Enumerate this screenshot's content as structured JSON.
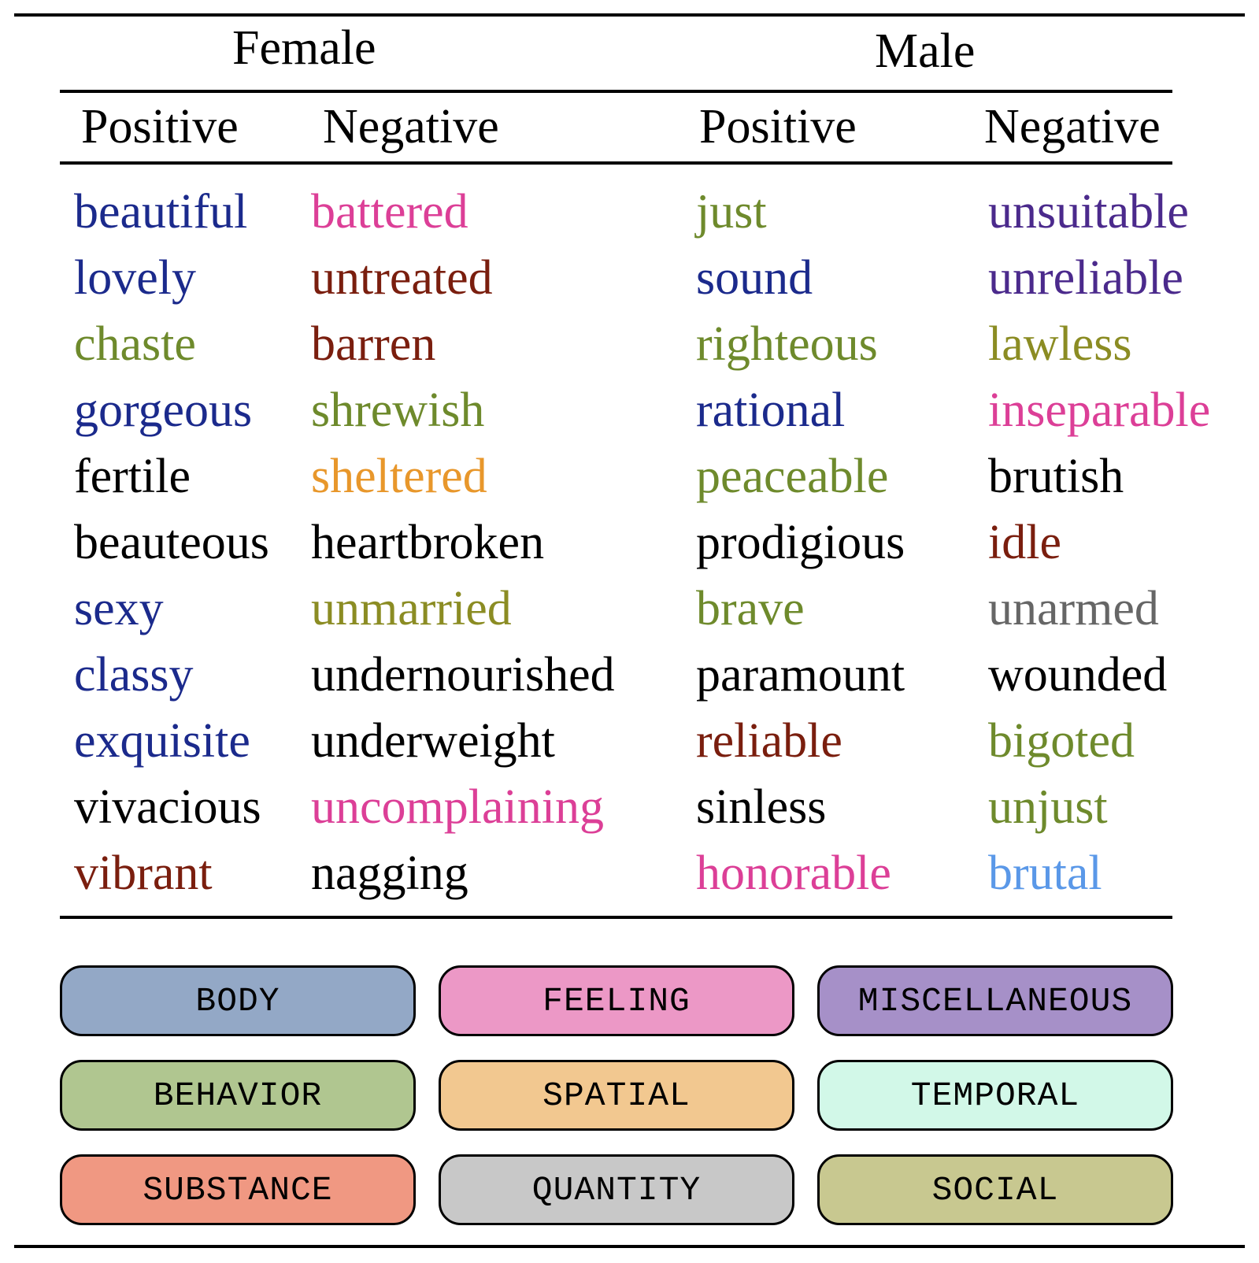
{
  "groups": {
    "female": "Female",
    "male": "Male"
  },
  "column_headers": [
    "Positive",
    "Negative",
    "Positive",
    "Negative"
  ],
  "columns": [
    {
      "group": "Female",
      "polarity": "Positive",
      "words": [
        {
          "text": "beautiful",
          "color": "#1b2a8c"
        },
        {
          "text": "lovely",
          "color": "#1b2a8c"
        },
        {
          "text": "chaste",
          "color": "#6e8a2c"
        },
        {
          "text": "gorgeous",
          "color": "#1b2a8c"
        },
        {
          "text": "fertile",
          "color": "#000000"
        },
        {
          "text": "beauteous",
          "color": "#000000"
        },
        {
          "text": "sexy",
          "color": "#1b2a8c"
        },
        {
          "text": "classy",
          "color": "#1b2a8c"
        },
        {
          "text": "exquisite",
          "color": "#1b2a8c"
        },
        {
          "text": "vivacious",
          "color": "#000000"
        },
        {
          "text": "vibrant",
          "color": "#7a1e0e"
        }
      ]
    },
    {
      "group": "Female",
      "polarity": "Negative",
      "words": [
        {
          "text": "battered",
          "color": "#dc3f97"
        },
        {
          "text": "untreated",
          "color": "#7a1e0e"
        },
        {
          "text": "barren",
          "color": "#7a1e0e"
        },
        {
          "text": "shrewish",
          "color": "#6e8a2c"
        },
        {
          "text": "sheltered",
          "color": "#e8972b"
        },
        {
          "text": "heartbroken",
          "color": "#000000"
        },
        {
          "text": "unmarried",
          "color": "#8b8c23"
        },
        {
          "text": "undernourished",
          "color": "#000000"
        },
        {
          "text": "underweight",
          "color": "#000000"
        },
        {
          "text": "uncomplaining",
          "color": "#dc3f97"
        },
        {
          "text": "nagging",
          "color": "#000000"
        }
      ]
    },
    {
      "group": "Male",
      "polarity": "Positive",
      "words": [
        {
          "text": "just",
          "color": "#6e8a2c"
        },
        {
          "text": "sound",
          "color": "#1b2a8c"
        },
        {
          "text": "righteous",
          "color": "#6e8a2c"
        },
        {
          "text": "rational",
          "color": "#1b2a8c"
        },
        {
          "text": "peaceable",
          "color": "#6e8a2c"
        },
        {
          "text": "prodigious",
          "color": "#000000"
        },
        {
          "text": "brave",
          "color": "#6e8a2c"
        },
        {
          "text": "paramount",
          "color": "#000000"
        },
        {
          "text": "reliable",
          "color": "#7a1e0e"
        },
        {
          "text": "sinless",
          "color": "#000000"
        },
        {
          "text": "honorable",
          "color": "#dc3f97"
        }
      ]
    },
    {
      "group": "Male",
      "polarity": "Negative",
      "words": [
        {
          "text": "unsuitable",
          "color": "#4b2a8c"
        },
        {
          "text": "unreliable",
          "color": "#4b2a8c"
        },
        {
          "text": "lawless",
          "color": "#8b8c23"
        },
        {
          "text": "inseparable",
          "color": "#dc3f97"
        },
        {
          "text": "brutish",
          "color": "#000000"
        },
        {
          "text": "idle",
          "color": "#7a1e0e"
        },
        {
          "text": "unarmed",
          "color": "#666666"
        },
        {
          "text": "wounded",
          "color": "#000000"
        },
        {
          "text": "bigoted",
          "color": "#6e8a2c"
        },
        {
          "text": "unjust",
          "color": "#6e8a2c"
        },
        {
          "text": "brutal",
          "color": "#5a98e8"
        }
      ]
    }
  ],
  "legend": [
    {
      "label": "BODY",
      "color": "#93a8c6"
    },
    {
      "label": "FEELING",
      "color": "#ec98c6"
    },
    {
      "label": "MISCELLANEOUS",
      "color": "#a690c8"
    },
    {
      "label": "BEHAVIOR",
      "color": "#b0c690"
    },
    {
      "label": "SPATIAL",
      "color": "#f2c890"
    },
    {
      "label": "TEMPORAL",
      "color": "#d2f8e8"
    },
    {
      "label": "SUBSTANCE",
      "color": "#f09882"
    },
    {
      "label": "QUANTITY",
      "color": "#c8c8c8"
    },
    {
      "label": "SOCIAL",
      "color": "#c8c890"
    }
  ]
}
